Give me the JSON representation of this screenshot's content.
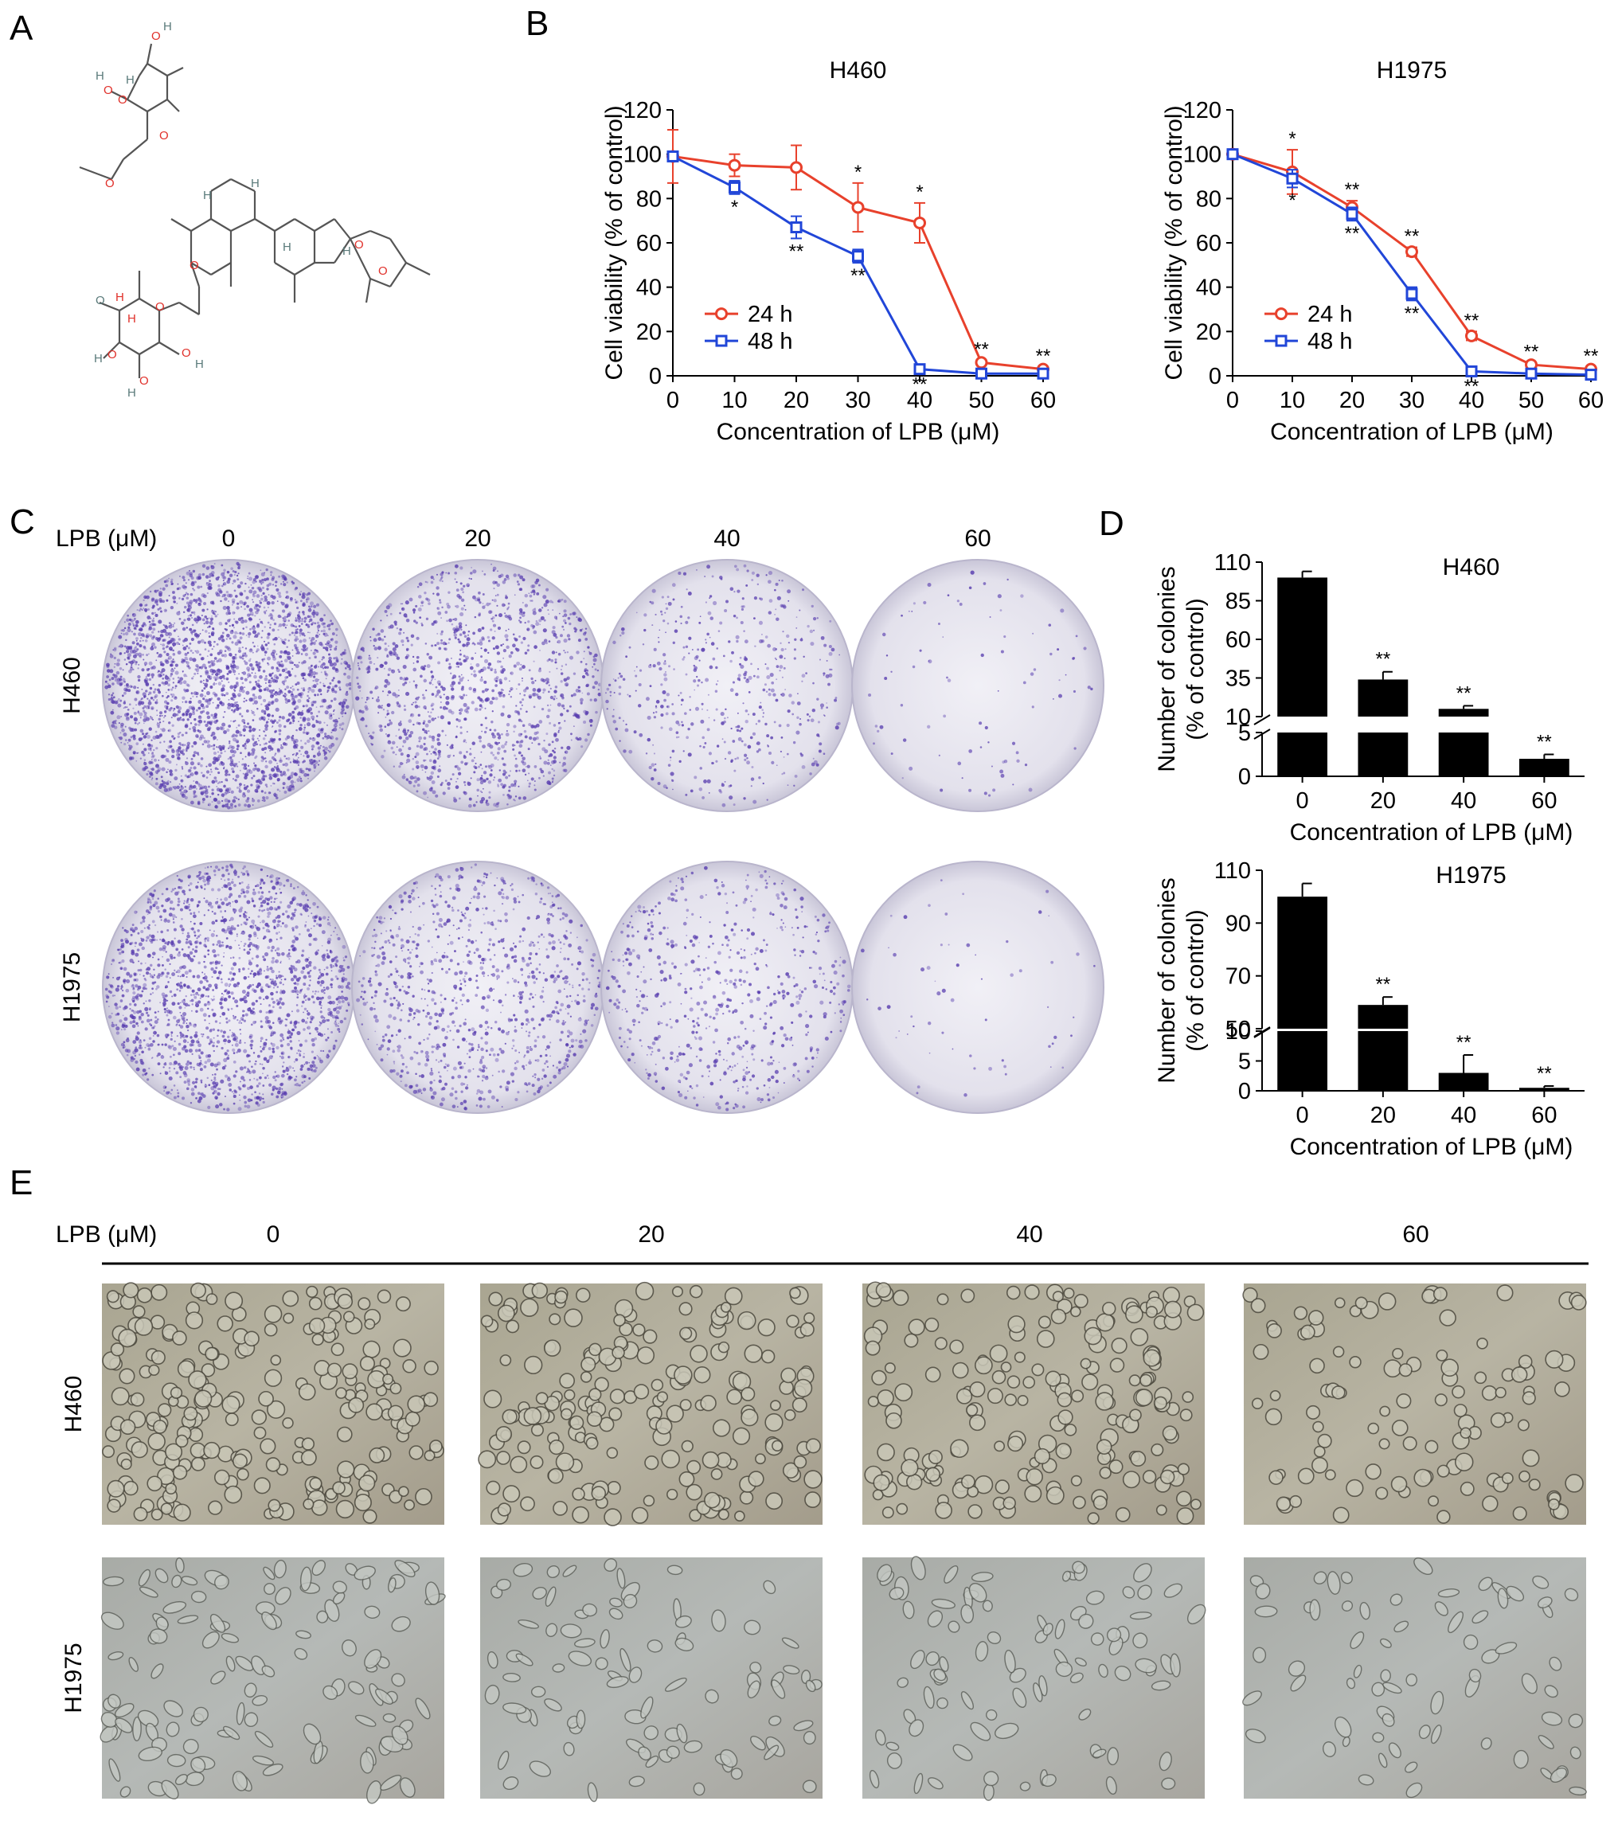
{
  "panels": {
    "A": {
      "letter": "A"
    },
    "B": {
      "letter": "B"
    },
    "C": {
      "letter": "C",
      "treatment_label": "LPB (μM)",
      "concentrations": [
        "0",
        "20",
        "40",
        "60"
      ],
      "rows": [
        "H460",
        "H1975"
      ]
    },
    "D": {
      "letter": "D"
    },
    "E": {
      "letter": "E",
      "treatment_label": "LPB (μM)",
      "concentrations": [
        "0",
        "20",
        "40",
        "60"
      ],
      "rows": [
        "H460",
        "H1975"
      ]
    }
  },
  "structure": {
    "atom_labels": [
      "O",
      "H",
      "O",
      "H",
      "O",
      "H",
      "O",
      "O",
      "O",
      "H",
      "H",
      "H",
      "H",
      "O",
      "O",
      "O",
      "H",
      "O",
      "H",
      "O",
      "H",
      "O",
      "H",
      "O",
      "H"
    ]
  },
  "colors": {
    "series_24h": "#e8412c",
    "series_48h": "#2146d8",
    "bars": "#000000",
    "stain": "#5a3fb0"
  },
  "chart_data": [
    {
      "type": "line",
      "title": "H460",
      "xlabel": "Concentration of LPB (μM)",
      "ylabel": "Cell viability (% of control)",
      "x": [
        0,
        10,
        20,
        30,
        40,
        50,
        60
      ],
      "xlim": [
        0,
        60
      ],
      "ylim": [
        0,
        120
      ],
      "xticks": [
        "0",
        "10",
        "20",
        "30",
        "40",
        "50",
        "60"
      ],
      "yticks": [
        "0",
        "20",
        "40",
        "60",
        "80",
        "100",
        "120"
      ],
      "legend_position": "bottom-left",
      "series": [
        {
          "name": "24 h",
          "values": [
            99,
            95,
            94,
            76,
            69,
            6,
            3
          ],
          "errors": [
            12,
            5,
            10,
            11,
            9,
            1,
            1
          ],
          "sig": [
            "",
            "",
            "",
            "*",
            "*",
            "**",
            "**"
          ],
          "sig_side": "above"
        },
        {
          "name": "48 h",
          "values": [
            99,
            85,
            67,
            54,
            3,
            1,
            1
          ],
          "errors": [
            2,
            3,
            5,
            3,
            1,
            0.5,
            0.5
          ],
          "sig": [
            "",
            "*",
            "**",
            "**",
            "**",
            "",
            ""
          ],
          "sig_side": "below"
        }
      ]
    },
    {
      "type": "line",
      "title": "H1975",
      "xlabel": "Concentration of LPB (μM)",
      "ylabel": "Cell viability (% of control)",
      "x": [
        0,
        10,
        20,
        30,
        40,
        50,
        60
      ],
      "xlim": [
        0,
        60
      ],
      "ylim": [
        0,
        120
      ],
      "xticks": [
        "0",
        "10",
        "20",
        "30",
        "40",
        "50",
        "60"
      ],
      "yticks": [
        "0",
        "20",
        "40",
        "60",
        "80",
        "100",
        "120"
      ],
      "legend_position": "bottom-left",
      "series": [
        {
          "name": "24 h",
          "values": [
            100,
            92,
            76,
            56,
            18,
            5,
            3
          ],
          "errors": [
            2,
            10,
            3,
            2,
            2,
            1,
            1
          ],
          "sig": [
            "",
            "*",
            "**",
            "**",
            "**",
            "**",
            "**"
          ],
          "sig_side": "above"
        },
        {
          "name": "48 h",
          "values": [
            100,
            89,
            73,
            37,
            2,
            1,
            0.5
          ],
          "errors": [
            2,
            4,
            3,
            3,
            1,
            0.5,
            0.5
          ],
          "sig": [
            "",
            "*",
            "**",
            "**",
            "**",
            "",
            ""
          ],
          "sig_side": "below"
        }
      ]
    },
    {
      "type": "bar",
      "title": "H460",
      "xlabel": "Concentration of LPB (μM)",
      "ylabel": [
        "Number of colonies",
        "(% of control)"
      ],
      "categories": [
        "0",
        "20",
        "40",
        "60"
      ],
      "values": [
        100,
        34,
        15,
        2
      ],
      "errors": [
        4,
        5,
        2,
        0.5
      ],
      "sig": [
        "",
        "**",
        "**",
        "**"
      ],
      "axis_break": {
        "lower": [
          0,
          5
        ],
        "upper": [
          10,
          110
        ]
      },
      "yticks_lower": [
        "0",
        "5"
      ],
      "yticks_upper": [
        "10",
        "35",
        "60",
        "85",
        "110"
      ]
    },
    {
      "type": "bar",
      "title": "H1975",
      "xlabel": "Concentration of LPB (μM)",
      "ylabel": [
        "Number of colonies",
        "(% of control)"
      ],
      "categories": [
        "0",
        "20",
        "40",
        "60"
      ],
      "values": [
        100,
        59,
        3,
        0.5
      ],
      "errors": [
        5,
        3,
        3,
        0.3
      ],
      "sig": [
        "",
        "**",
        "**",
        "**"
      ],
      "axis_break": {
        "lower": [
          0,
          10
        ],
        "upper": [
          50,
          110
        ]
      },
      "yticks_lower": [
        "0",
        "5",
        "10"
      ],
      "yticks_upper": [
        "50",
        "70",
        "90",
        "110"
      ]
    }
  ]
}
